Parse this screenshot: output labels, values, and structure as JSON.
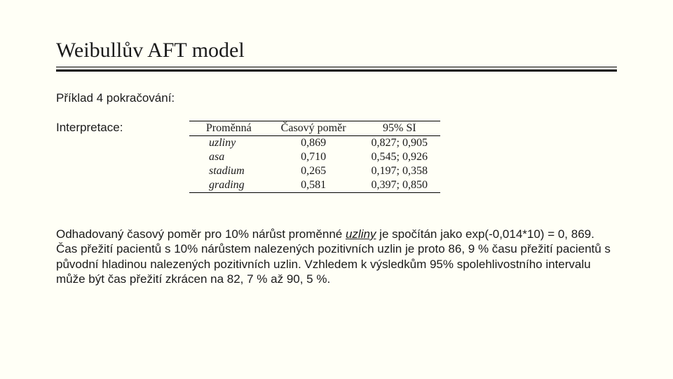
{
  "title": "Weibullův AFT model",
  "subtitle": "Příklad 4 pokračování:",
  "interpretation_label": "Interpretace:",
  "table": {
    "headers": {
      "c1": "Proměnná",
      "c2": "Časový poměr",
      "c3": "95% SI"
    },
    "rows": [
      {
        "var": "uzliny",
        "ratio": "0,869",
        "ci": "0,827; 0,905"
      },
      {
        "var": "asa",
        "ratio": "0,710",
        "ci": "0,545; 0,926"
      },
      {
        "var": "stadium",
        "ratio": "0,265",
        "ci": "0,197; 0,358"
      },
      {
        "var": "grading",
        "ratio": "0,581",
        "ci": "0,397; 0,850"
      }
    ]
  },
  "body": {
    "p1a": "Odhadovaný časový poměr pro 10% nárůst proměnné ",
    "p1_it": "uzliny",
    "p1b": " je spočítán jako exp(-0,014*10) = 0, 869. Čas přežití pacientů s 10% nárůstem nalezených pozitivních uzlin je proto 86, 9 % času přežití pacientů s původní hladinou nalezených pozitivních uzlin. Vzhledem k výsledkům 95% spolehlivostního intervalu může být čas přežití zkrácen na 82, 7 % až 90, 5 %."
  }
}
